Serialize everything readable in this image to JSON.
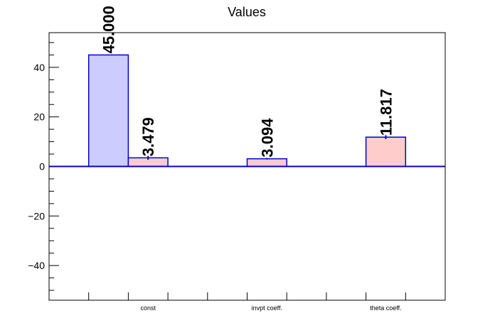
{
  "chart_data": {
    "type": "bar",
    "title": "Values",
    "xlabel": "",
    "ylabel": "",
    "ylim": [
      -54,
      54
    ],
    "y_ticks": [
      -40,
      -20,
      0,
      20,
      40
    ],
    "y_tick_labels": [
      "−40",
      "−20",
      "0",
      "20",
      "40"
    ],
    "categories": [
      "const",
      "invpt coeff.",
      "theta coeff."
    ],
    "category_slots": 10,
    "category_label_slots": [
      2.5,
      5.5,
      8.5
    ],
    "bars": [
      {
        "category": "const",
        "slot": 1,
        "value": 45.0,
        "error": 0.0,
        "label": "45.000",
        "series": 0
      },
      {
        "category": "const",
        "slot": 2,
        "value": 3.479,
        "error": 0.8,
        "label": "3.479",
        "series": 1
      },
      {
        "category": "invpt coeff.",
        "slot": 5,
        "value": 3.094,
        "error": 0.3,
        "label": "3.094",
        "series": 1
      },
      {
        "category": "theta coeff.",
        "slot": 8,
        "value": 11.817,
        "error": 0.8,
        "label": "11.817",
        "series": 1
      }
    ],
    "series_colors": [
      {
        "fill": "#ccccff",
        "stroke": "#0000cc"
      },
      {
        "fill": "#ffcccc",
        "stroke": "#0000cc"
      }
    ],
    "zero_line_color": "#0000cc",
    "error_bar_color": "#0000cc",
    "grid": false,
    "legend": "none"
  }
}
